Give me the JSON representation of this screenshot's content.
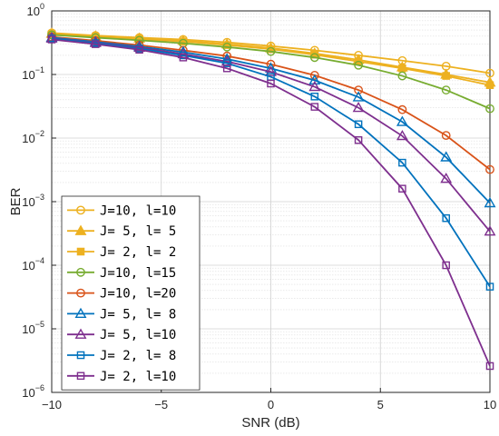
{
  "chart_data": {
    "type": "line",
    "title": "",
    "xlabel": "SNR (dB)",
    "ylabel": "BER",
    "xlim": [
      -10,
      10
    ],
    "ylim_log10": [
      -6,
      0
    ],
    "yscale": "log",
    "grid": true,
    "minor_grid": true,
    "legend_position": "bottom-left",
    "x_ticks": [
      -10,
      -5,
      0,
      5,
      10
    ],
    "x_tick_labels": [
      "−10",
      "−5",
      "0",
      "5",
      "10"
    ],
    "y_ticks": [
      {
        "value": 1.0,
        "base": "10",
        "exp": "0"
      },
      {
        "value": 0.1,
        "base": "10",
        "exp": "−1"
      },
      {
        "value": 0.01,
        "base": "10",
        "exp": "−2"
      },
      {
        "value": 0.001,
        "base": "10",
        "exp": "−3"
      },
      {
        "value": 0.0001,
        "base": "10",
        "exp": "−4"
      },
      {
        "value": 1e-05,
        "base": "10",
        "exp": "−5"
      },
      {
        "value": 1e-06,
        "base": "10",
        "exp": "−6"
      }
    ],
    "x": [
      -10,
      -8,
      -6,
      -4,
      -2,
      0,
      2,
      4,
      6,
      8,
      10
    ],
    "series": [
      {
        "name": "J=10, l=10",
        "color": "#EDB120",
        "marker": "circle",
        "values": [
          0.45,
          0.41,
          0.38,
          0.355,
          0.32,
          0.28,
          0.24,
          0.2,
          0.165,
          0.135,
          0.105
        ]
      },
      {
        "name": "J= 5, l= 5",
        "color": "#EDB120",
        "marker": "triangle-filled",
        "values": [
          0.44,
          0.4,
          0.37,
          0.34,
          0.3,
          0.26,
          0.215,
          0.17,
          0.13,
          0.1,
          0.075
        ]
      },
      {
        "name": "J= 2, l= 2",
        "color": "#EDB120",
        "marker": "square-filled",
        "values": [
          0.43,
          0.39,
          0.36,
          0.33,
          0.29,
          0.25,
          0.205,
          0.16,
          0.125,
          0.095,
          0.068
        ]
      },
      {
        "name": "J=10, l=15",
        "color": "#77AC30",
        "marker": "circle",
        "values": [
          0.42,
          0.38,
          0.345,
          0.31,
          0.27,
          0.23,
          0.185,
          0.14,
          0.095,
          0.057,
          0.029
        ]
      },
      {
        "name": "J=10, l=20",
        "color": "#D95319",
        "marker": "circle",
        "values": [
          0.39,
          0.34,
          0.29,
          0.24,
          0.195,
          0.145,
          0.097,
          0.057,
          0.028,
          0.011,
          0.0032
        ]
      },
      {
        "name": "J= 5, l= 8",
        "color": "#0072BD",
        "marker": "triangle",
        "values": [
          0.38,
          0.325,
          0.275,
          0.225,
          0.175,
          0.125,
          0.081,
          0.044,
          0.018,
          0.005,
          0.00095
        ]
      },
      {
        "name": "J= 5, l=10",
        "color": "#7E2F8E",
        "marker": "triangle",
        "values": [
          0.37,
          0.315,
          0.265,
          0.21,
          0.16,
          0.11,
          0.064,
          0.03,
          0.0108,
          0.0023,
          0.00034
        ]
      },
      {
        "name": "J= 2, l= 8",
        "color": "#0072BD",
        "marker": "square",
        "values": [
          0.365,
          0.31,
          0.255,
          0.2,
          0.15,
          0.092,
          0.045,
          0.0165,
          0.0041,
          0.00055,
          4.6e-05
        ]
      },
      {
        "name": "J= 2, l=10",
        "color": "#7E2F8E",
        "marker": "square",
        "values": [
          0.355,
          0.3,
          0.245,
          0.185,
          0.125,
          0.072,
          0.031,
          0.0093,
          0.0016,
          0.0001,
          2.6e-06
        ]
      }
    ]
  }
}
